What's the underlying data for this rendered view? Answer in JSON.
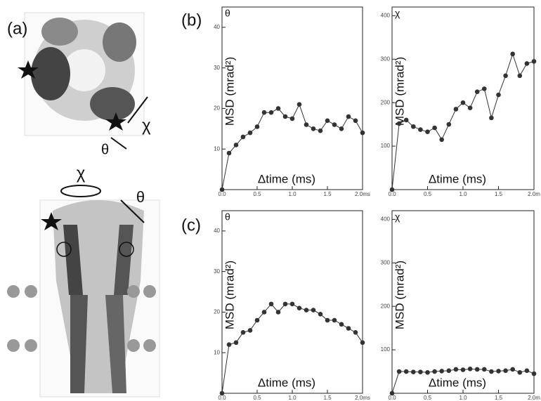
{
  "panel_labels": [
    "(a)",
    "(b)",
    "(c)"
  ],
  "annotations": [
    "χ",
    "θ",
    "χ",
    "θ"
  ],
  "chart_data": [
    {
      "type": "line",
      "title": "θ",
      "xlabel": "Δtime (ms)",
      "ylabel": "MSD (mrad²)",
      "x": [
        0,
        0.1,
        0.2,
        0.3,
        0.4,
        0.5,
        0.6,
        0.7,
        0.8,
        0.9,
        1.0,
        1.1,
        1.2,
        1.3,
        1.4,
        1.5,
        1.6,
        1.7,
        1.8,
        1.9,
        2.0
      ],
      "series": [
        {
          "color": "#333333",
          "values": [
            0,
            9,
            11,
            13,
            14,
            15.5,
            19,
            19,
            20,
            18,
            17.5,
            21,
            16,
            15,
            14.5,
            17,
            16,
            15,
            18,
            17,
            14
          ]
        }
      ],
      "xlim": [
        0,
        2.0
      ],
      "ylim": [
        0,
        45
      ],
      "xticks": [
        {
          "value": 0,
          "label": "0.0"
        },
        0.5,
        {
          "value": 1,
          "label": "1.0"
        },
        1.5,
        {
          "value": 2,
          "label": "2.0ms"
        }
      ],
      "yticks": [
        10,
        20,
        30,
        40
      ]
    },
    {
      "type": "line",
      "title": "χ",
      "xlabel": "Δtime (ms)",
      "ylabel": "MSD (mrad²)",
      "x": [
        0,
        0.1,
        0.2,
        0.3,
        0.4,
        0.5,
        0.6,
        0.7,
        0.8,
        0.9,
        1.0,
        1.1,
        1.2,
        1.3,
        1.4,
        1.5,
        1.6,
        1.7,
        1.8,
        1.9,
        2.0
      ],
      "series": [
        {
          "color": "#333333",
          "values": [
            0,
            152,
            160,
            145,
            138,
            133,
            142,
            115,
            150,
            185,
            200,
            188,
            225,
            232,
            165,
            218,
            262,
            312,
            262,
            290,
            295
          ]
        }
      ],
      "xlim": [
        0,
        2.0
      ],
      "ylim": [
        0,
        420
      ],
      "xticks": [
        {
          "value": 0,
          "label": "0.0"
        },
        0.5,
        {
          "value": 1,
          "label": "1.0"
        },
        1.5,
        {
          "value": 2,
          "label": "2.0m"
        }
      ],
      "yticks": [
        100,
        200,
        300,
        400
      ]
    },
    {
      "type": "line",
      "title": "θ",
      "xlabel": "Δtime (ms)",
      "ylabel": "MSD (mrad²)",
      "x": [
        0,
        0.1,
        0.2,
        0.3,
        0.4,
        0.5,
        0.6,
        0.7,
        0.8,
        0.9,
        1.0,
        1.1,
        1.2,
        1.3,
        1.4,
        1.5,
        1.6,
        1.7,
        1.8,
        1.9,
        2.0
      ],
      "series": [
        {
          "color": "#333333",
          "values": [
            0,
            12,
            12.5,
            15,
            15.5,
            18,
            20,
            22,
            20,
            22,
            22,
            21,
            20.5,
            20.5,
            19.5,
            18,
            18,
            17,
            16,
            15,
            12.5
          ]
        }
      ],
      "xlim": [
        0,
        2.0
      ],
      "ylim": [
        0,
        45
      ],
      "xticks": [
        {
          "value": 0,
          "label": "0.0"
        },
        0.5,
        {
          "value": 1,
          "label": "1.0"
        },
        1.5,
        {
          "value": 2,
          "label": "2.0ms"
        }
      ],
      "yticks": [
        10,
        20,
        30,
        40
      ]
    },
    {
      "type": "line",
      "title": "χ",
      "xlabel": "Δtime (ms)",
      "ylabel": "MSD (mrad²)",
      "x": [
        0,
        0.1,
        0.2,
        0.3,
        0.4,
        0.5,
        0.6,
        0.7,
        0.8,
        0.9,
        1.0,
        1.1,
        1.2,
        1.3,
        1.4,
        1.5,
        1.6,
        1.7,
        1.8,
        1.9,
        2.0
      ],
      "series": [
        {
          "color": "#333333",
          "values": [
            0,
            50,
            50,
            49,
            49,
            48,
            50,
            51,
            52,
            55,
            54,
            56,
            55,
            55,
            50,
            51,
            52,
            55,
            48,
            52,
            45
          ]
        }
      ],
      "xlim": [
        0,
        2.0
      ],
      "ylim": [
        0,
        420
      ],
      "xticks": [
        {
          "value": 0,
          "label": "0.0"
        },
        0.5,
        {
          "value": 1,
          "label": "1.0"
        },
        1.5,
        {
          "value": 2,
          "label": "2.0m"
        }
      ],
      "yticks": [
        100,
        200,
        300,
        400
      ]
    }
  ]
}
